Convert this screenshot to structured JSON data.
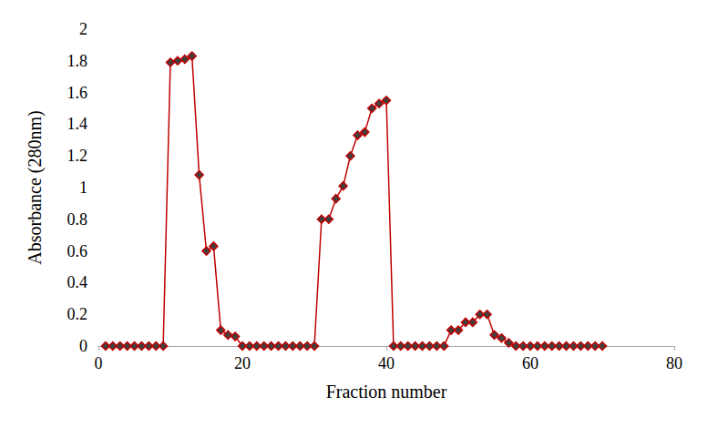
{
  "chart_data": {
    "type": "line",
    "x_label": "Fraction number",
    "y_label": "Absorbance (280nm)",
    "x": [
      1,
      2,
      3,
      4,
      5,
      6,
      7,
      8,
      9,
      10,
      11,
      12,
      13,
      14,
      15,
      16,
      17,
      18,
      19,
      20,
      21,
      22,
      23,
      24,
      25,
      26,
      27,
      28,
      29,
      30,
      31,
      32,
      33,
      34,
      35,
      36,
      37,
      38,
      39,
      40,
      41,
      42,
      43,
      44,
      45,
      46,
      47,
      48,
      49,
      50,
      51,
      52,
      53,
      54,
      55,
      56,
      57,
      58,
      59,
      60,
      61,
      62,
      63,
      64,
      65,
      66,
      67,
      68,
      69,
      70
    ],
    "values": [
      0,
      0,
      0,
      0,
      0,
      0,
      0,
      0,
      0,
      1.79,
      1.8,
      1.81,
      1.83,
      1.08,
      0.6,
      0.63,
      0.1,
      0.07,
      0.06,
      0,
      0,
      0,
      0,
      0,
      0,
      0,
      0,
      0,
      0,
      0,
      0.8,
      0.8,
      0.93,
      1.01,
      1.2,
      1.33,
      1.35,
      1.5,
      1.53,
      1.55,
      0,
      0,
      0,
      0,
      0,
      0,
      0,
      0,
      0.1,
      0.1,
      0.15,
      0.15,
      0.2,
      0.2,
      0.07,
      0.05,
      0.02,
      0,
      0,
      0,
      0,
      0,
      0,
      0,
      0,
      0,
      0,
      0,
      0,
      0
    ],
    "color": "#c00000",
    "marker": "diamond",
    "xlim": [
      0,
      80
    ],
    "xticks": [
      0,
      20,
      40,
      60,
      80
    ],
    "ylim": [
      0,
      2
    ],
    "yticks": [
      0,
      0.2,
      0.4,
      0.6,
      0.8,
      1,
      1.2,
      1.4,
      1.6,
      1.8,
      2
    ],
    "grid": false
  }
}
